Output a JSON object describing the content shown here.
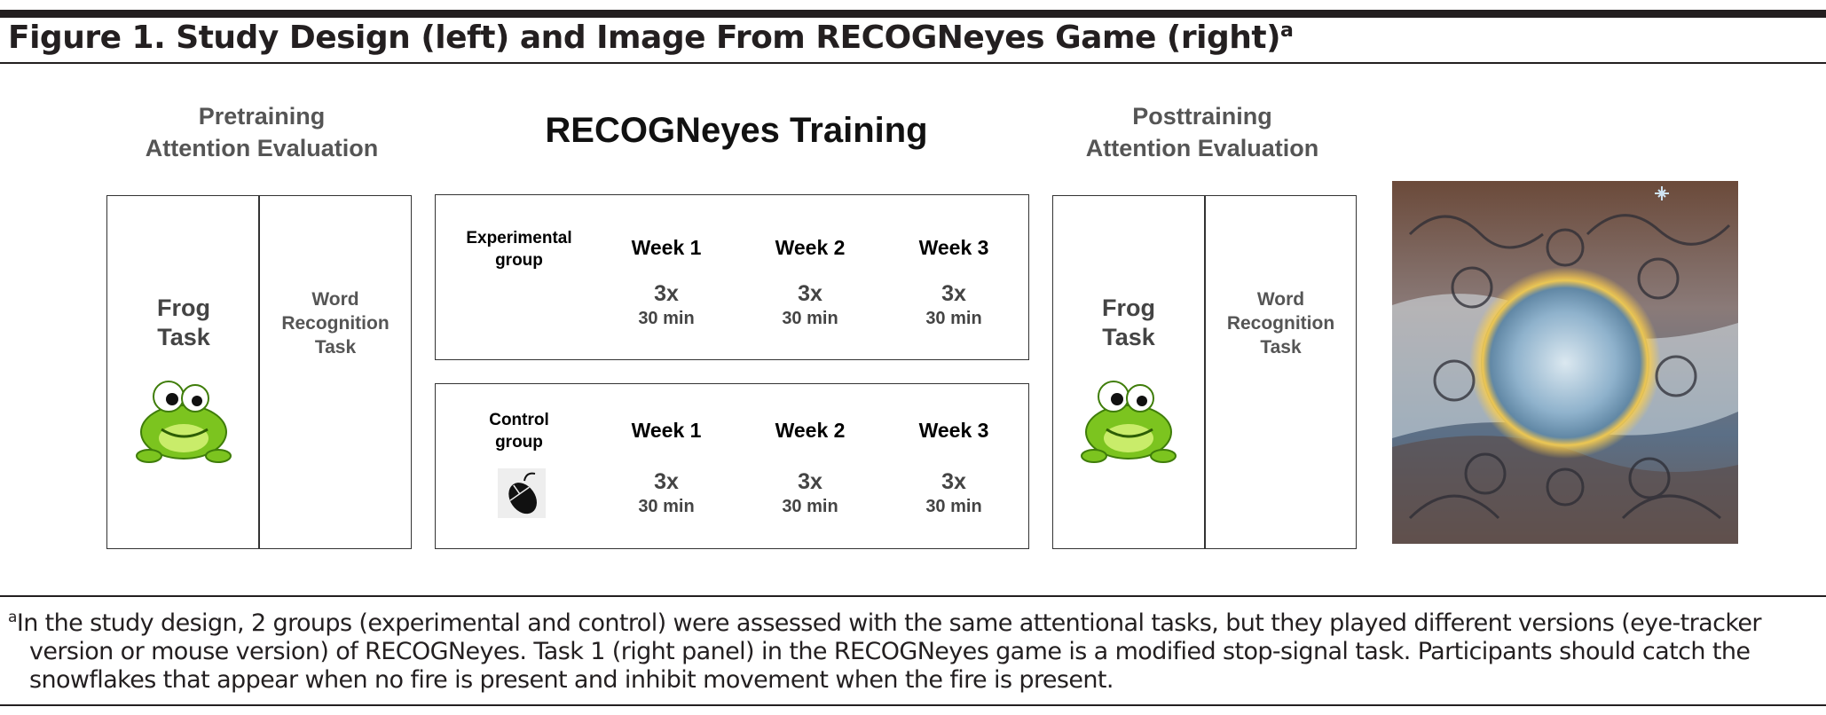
{
  "figure": {
    "title": "Figure 1. Study Design (left) and Image From RECOGNeyes Game (right)",
    "title_marker": "a"
  },
  "pre": {
    "heading_line1": "Pretraining",
    "heading_line2": "Attention Evaluation",
    "frog_line1": "Frog",
    "frog_line2": "Task",
    "word_line1": "Word",
    "word_line2": "Recognition",
    "word_line3": "Task"
  },
  "training": {
    "heading": "RECOGNeyes Training",
    "experimental": {
      "label_line1": "Experimental",
      "label_line2": "group",
      "weeks": [
        {
          "week": "Week 1",
          "times": "3x",
          "duration": "30 min"
        },
        {
          "week": "Week 2",
          "times": "3x",
          "duration": "30 min"
        },
        {
          "week": "Week 3",
          "times": "3x",
          "duration": "30 min"
        }
      ]
    },
    "control": {
      "label_line1": "Control",
      "label_line2": "group",
      "icon": "mouse-icon",
      "weeks": [
        {
          "week": "Week 1",
          "times": "3x",
          "duration": "30 min"
        },
        {
          "week": "Week 2",
          "times": "3x",
          "duration": "30 min"
        },
        {
          "week": "Week 3",
          "times": "3x",
          "duration": "30 min"
        }
      ]
    }
  },
  "post": {
    "heading_line1": "Posttraining",
    "heading_line2": "Attention Evaluation",
    "frog_line1": "Frog",
    "frog_line2": "Task",
    "word_line1": "Word",
    "word_line2": "Recognition",
    "word_line3": "Task"
  },
  "footnote": {
    "marker": "a",
    "line1": "In the study design, 2 groups (experimental and control) were assessed with the same attentional tasks, but they played different versions (eye-tracker",
    "line2": "version or mouse version) of RECOGNeyes. Task 1 (right panel) in the RECOGNeyes game is a modified stop-signal task. Participants should catch the",
    "line3": "snowflakes that appear when no fire is present and inhibit movement when the fire is present."
  },
  "colors": {
    "frog_green": "#7cc41f",
    "frog_dark": "#3f7d0a",
    "rule": "#231f20",
    "heading_gray": "#555555"
  }
}
